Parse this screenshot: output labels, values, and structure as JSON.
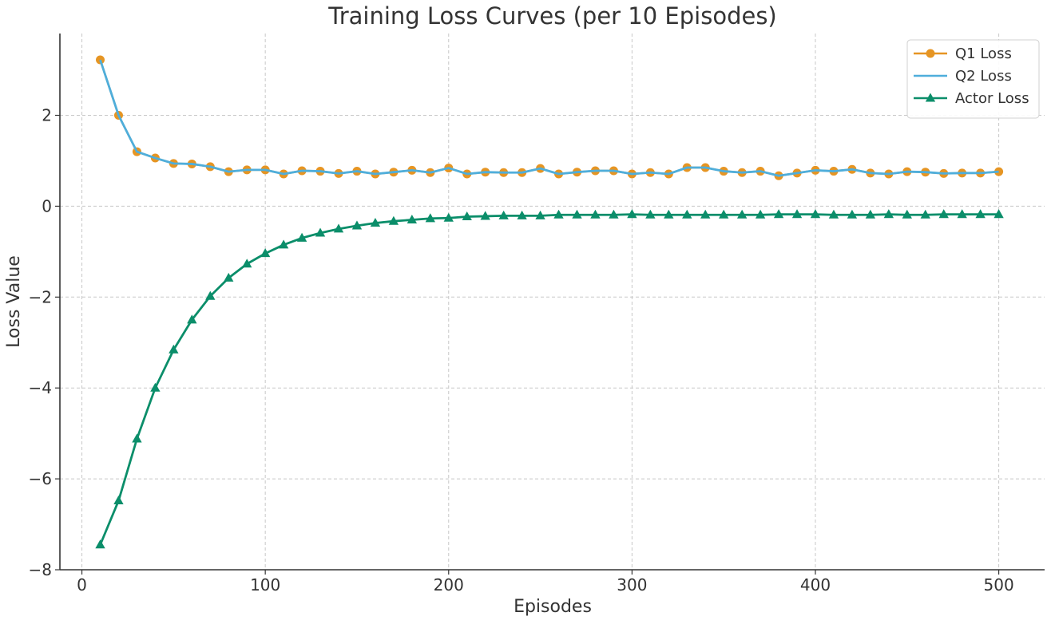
{
  "chart_data": {
    "type": "line",
    "title": "Training Loss Curves (per 10 Episodes)",
    "xlabel": "Episodes",
    "ylabel": "Loss Value",
    "xlim": [
      -12,
      525
    ],
    "ylim": [
      -8,
      3.8
    ],
    "xticks": [
      0,
      100,
      200,
      300,
      400,
      500
    ],
    "xtick_labels": [
      "0",
      "100",
      "200",
      "300",
      "400",
      "500"
    ],
    "yticks": [
      -8,
      -6,
      -4,
      -2,
      0,
      2
    ],
    "ytick_labels": [
      "−8",
      "−6",
      "−4",
      "−2",
      "0",
      "2"
    ],
    "grid": true,
    "legend_position": "top-right",
    "x": [
      10,
      20,
      30,
      40,
      50,
      60,
      70,
      80,
      90,
      100,
      110,
      120,
      130,
      140,
      150,
      160,
      170,
      180,
      190,
      200,
      210,
      220,
      230,
      240,
      250,
      260,
      270,
      280,
      290,
      300,
      310,
      320,
      330,
      340,
      350,
      360,
      370,
      380,
      390,
      400,
      410,
      420,
      430,
      440,
      450,
      460,
      470,
      480,
      490,
      500
    ],
    "series": [
      {
        "name": "Q1 Loss",
        "color": "#E69523",
        "marker": "circle",
        "draw_line": true,
        "values": [
          3.22,
          2.0,
          1.2,
          1.06,
          0.94,
          0.93,
          0.87,
          0.76,
          0.8,
          0.8,
          0.71,
          0.78,
          0.77,
          0.72,
          0.77,
          0.71,
          0.75,
          0.79,
          0.74,
          0.84,
          0.71,
          0.75,
          0.74,
          0.74,
          0.83,
          0.71,
          0.75,
          0.78,
          0.78,
          0.71,
          0.74,
          0.71,
          0.85,
          0.85,
          0.77,
          0.74,
          0.77,
          0.67,
          0.73,
          0.79,
          0.77,
          0.81,
          0.73,
          0.71,
          0.76,
          0.75,
          0.72,
          0.73,
          0.73,
          0.76
        ]
      },
      {
        "name": "Q2 Loss",
        "color": "#4FAEDB",
        "marker": "none",
        "draw_line": true,
        "values": [
          3.22,
          2.0,
          1.2,
          1.06,
          0.94,
          0.93,
          0.87,
          0.76,
          0.8,
          0.8,
          0.71,
          0.78,
          0.77,
          0.72,
          0.77,
          0.71,
          0.75,
          0.79,
          0.74,
          0.84,
          0.71,
          0.75,
          0.74,
          0.74,
          0.83,
          0.71,
          0.75,
          0.78,
          0.78,
          0.71,
          0.74,
          0.71,
          0.85,
          0.85,
          0.77,
          0.74,
          0.77,
          0.67,
          0.73,
          0.79,
          0.77,
          0.81,
          0.73,
          0.71,
          0.76,
          0.75,
          0.72,
          0.73,
          0.73,
          0.76
        ]
      },
      {
        "name": "Actor Loss",
        "color": "#0B8E6A",
        "marker": "triangle",
        "draw_line": true,
        "values": [
          -7.45,
          -6.48,
          -5.12,
          -4.0,
          -3.16,
          -2.5,
          -1.98,
          -1.58,
          -1.27,
          -1.04,
          -0.85,
          -0.7,
          -0.59,
          -0.5,
          -0.43,
          -0.37,
          -0.33,
          -0.3,
          -0.27,
          -0.26,
          -0.23,
          -0.22,
          -0.21,
          -0.21,
          -0.21,
          -0.19,
          -0.19,
          -0.19,
          -0.19,
          -0.18,
          -0.19,
          -0.19,
          -0.19,
          -0.19,
          -0.19,
          -0.19,
          -0.19,
          -0.18,
          -0.18,
          -0.18,
          -0.19,
          -0.19,
          -0.19,
          -0.18,
          -0.19,
          -0.19,
          -0.18,
          -0.18,
          -0.18,
          -0.18
        ]
      }
    ]
  }
}
